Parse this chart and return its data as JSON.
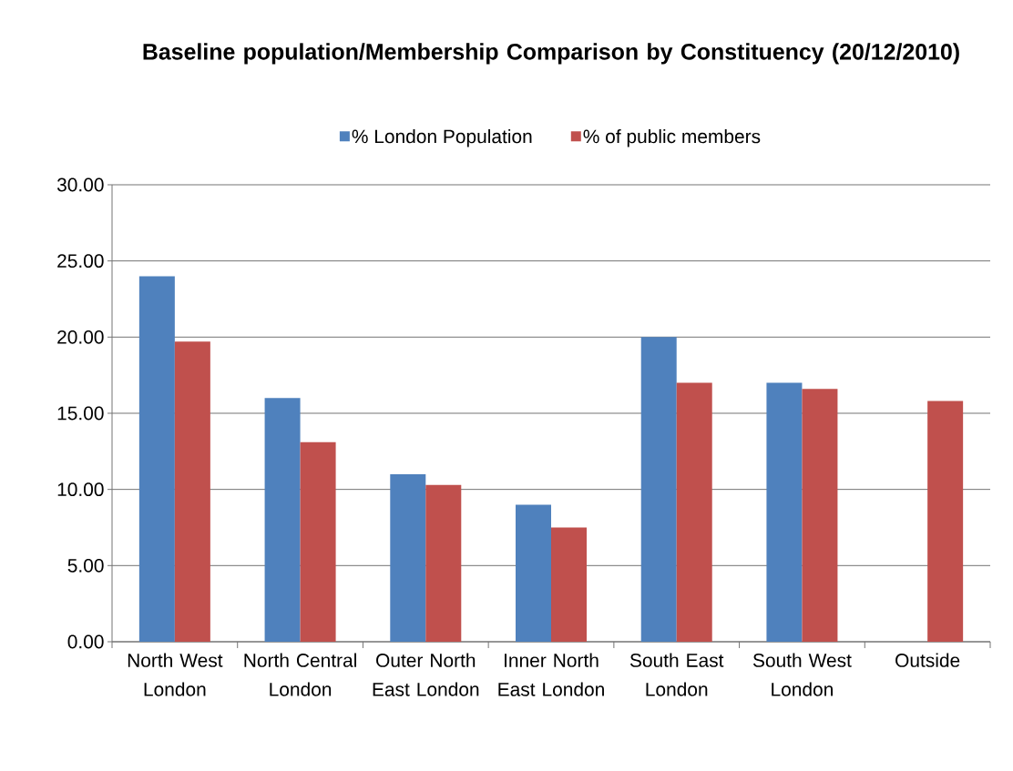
{
  "chart_data": {
    "type": "bar",
    "title": "Baseline population/Membership Comparison by Constituency (20/12/2010)",
    "categories": [
      "North West London",
      "North Central London",
      "Outer North East London",
      "Inner North East London",
      "South East London",
      "South West London",
      "Outside"
    ],
    "series": [
      {
        "name": "% London Population",
        "color": "#4f81bd",
        "values": [
          24,
          16,
          11,
          9,
          20,
          17,
          null
        ]
      },
      {
        "name": "% of public members",
        "color": "#c0504d",
        "values": [
          19.7,
          13.1,
          10.3,
          7.5,
          17,
          16.6,
          15.8
        ]
      }
    ],
    "ylim": [
      0,
      30
    ],
    "yticks": [
      {
        "value": 0,
        "label": "0.00"
      },
      {
        "value": 5,
        "label": "5.00"
      },
      {
        "value": 10,
        "label": "10.00"
      },
      {
        "value": 15,
        "label": "15.00"
      },
      {
        "value": 20,
        "label": "20.00"
      },
      {
        "value": 25,
        "label": "25.00"
      },
      {
        "value": 30,
        "label": "30.00"
      }
    ],
    "grid": "y",
    "legend": "top"
  }
}
